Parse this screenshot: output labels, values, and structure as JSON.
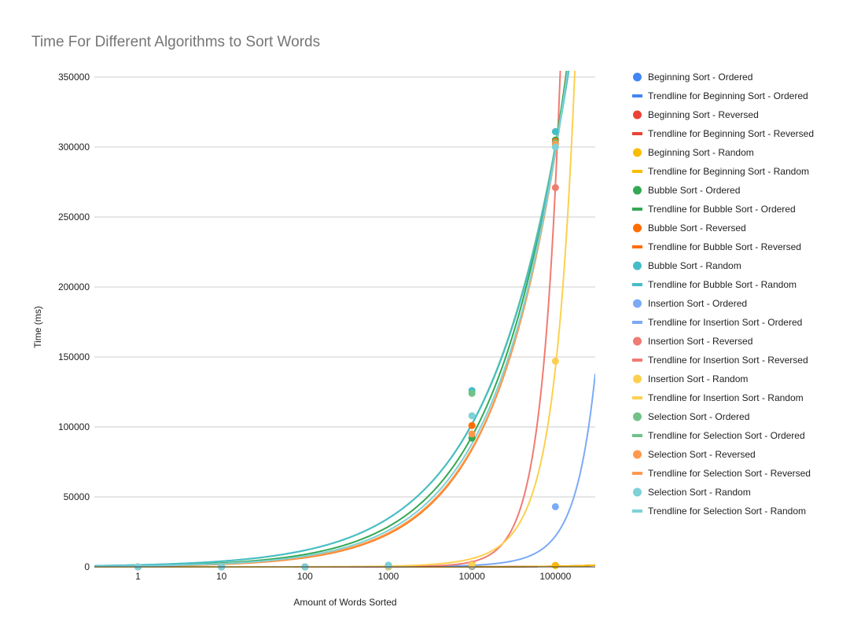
{
  "chart_data": {
    "type": "scatter",
    "title": "Time For Different Algorithms to Sort Words",
    "xlabel": "Amount of Words Sorted",
    "ylabel": "Time (ms)",
    "x_scale": "log",
    "x_ticks": [
      "1",
      "10",
      "100",
      "1000",
      "10000",
      "100000"
    ],
    "y_ticks": [
      "0",
      "50000",
      "100000",
      "150000",
      "200000",
      "250000",
      "300000",
      "350000"
    ],
    "xlim": [
      0.3,
      300000
    ],
    "ylim": [
      0,
      350000
    ],
    "grid": true,
    "legend_position": "right",
    "series": [
      {
        "name": "Beginning Sort - Ordered",
        "color": "#4285f4",
        "x": [
          1,
          10,
          100,
          1000,
          10000,
          100000
        ],
        "y": [
          0,
          0,
          0,
          20,
          200,
          1000
        ]
      },
      {
        "name": "Beginning Sort - Reversed",
        "color": "#ea4335",
        "x": [
          1,
          10,
          100,
          1000,
          10000,
          100000
        ],
        "y": [
          0,
          0,
          0,
          20,
          200,
          1000
        ]
      },
      {
        "name": "Beginning Sort - Random",
        "color": "#fbbc04",
        "x": [
          1,
          10,
          100,
          1000,
          10000,
          100000
        ],
        "y": [
          0,
          0,
          0,
          20,
          200,
          1000
        ]
      },
      {
        "name": "Bubble Sort - Ordered",
        "color": "#34a853",
        "x": [
          1,
          10,
          100,
          1000,
          10000,
          100000
        ],
        "y": [
          0,
          0,
          0,
          900,
          92000,
          305000
        ]
      },
      {
        "name": "Bubble Sort - Reversed",
        "color": "#ff6d01",
        "x": [
          1,
          10,
          100,
          1000,
          10000,
          100000
        ],
        "y": [
          0,
          0,
          0,
          1000,
          101000,
          304000
        ]
      },
      {
        "name": "Bubble Sort - Random",
        "color": "#46bdc6",
        "x": [
          1,
          10,
          100,
          1000,
          10000,
          100000
        ],
        "y": [
          0,
          0,
          0,
          1100,
          126000,
          311000
        ]
      },
      {
        "name": "Insertion Sort - Ordered",
        "color": "#7baaf7",
        "x": [
          1,
          10,
          100,
          1000,
          10000,
          100000
        ],
        "y": [
          0,
          0,
          0,
          50,
          500,
          43000
        ]
      },
      {
        "name": "Insertion Sort - Reversed",
        "color": "#f07b72",
        "x": [
          1,
          10,
          100,
          1000,
          10000,
          100000
        ],
        "y": [
          0,
          0,
          0,
          300,
          2000,
          271000
        ]
      },
      {
        "name": "Insertion Sort - Random",
        "color": "#fcd04f",
        "x": [
          1,
          10,
          100,
          1000,
          10000,
          100000
        ],
        "y": [
          0,
          0,
          0,
          200,
          1500,
          147000
        ]
      },
      {
        "name": "Selection Sort - Ordered",
        "color": "#71c287",
        "x": [
          1,
          10,
          100,
          1000,
          10000,
          100000
        ],
        "y": [
          0,
          0,
          0,
          900,
          124000,
          303000
        ]
      },
      {
        "name": "Selection Sort - Reversed",
        "color": "#ff994d",
        "x": [
          1,
          10,
          100,
          1000,
          10000,
          100000
        ],
        "y": [
          0,
          0,
          0,
          1000,
          95000,
          302000
        ]
      },
      {
        "name": "Selection Sort - Random",
        "color": "#7ed1d7",
        "x": [
          1,
          10,
          100,
          1000,
          10000,
          100000
        ],
        "y": [
          0,
          0,
          0,
          1200,
          108000,
          300000
        ]
      }
    ],
    "trendlines": [
      {
        "name": "Trendline for Beginning Sort - Ordered",
        "color": "#4285f4",
        "type": "polynomial",
        "coef": [
          0,
          0.004,
          0
        ]
      },
      {
        "name": "Trendline for Beginning Sort - Reversed",
        "color": "#ea4335",
        "type": "polynomial",
        "coef": [
          0,
          0.004,
          0
        ]
      },
      {
        "name": "Trendline for Beginning Sort - Random",
        "color": "#fbbc04",
        "type": "polynomial",
        "coef": [
          0,
          0.004,
          0
        ]
      },
      {
        "name": "Trendline for Bubble Sort - Ordered",
        "color": "#34a853",
        "type": "power",
        "coef": [
          850,
          0.51
        ]
      },
      {
        "name": "Trendline for Bubble Sort - Reversed",
        "color": "#ff6d01",
        "type": "power",
        "coef": [
          520,
          0.552
        ]
      },
      {
        "name": "Trendline for Bubble Sort - Random",
        "color": "#46bdc6",
        "type": "power",
        "coef": [
          1380,
          0.467
        ]
      },
      {
        "name": "Trendline for Insertion Sort - Ordered",
        "color": "#7baaf7",
        "type": "polynomial",
        "coef": [
          0,
          0.1,
          1.2e-06
        ]
      },
      {
        "name": "Trendline for Insertion Sort - Reversed",
        "color": "#f07b72",
        "type": "polynomial",
        "coef": [
          0,
          0.1,
          2.62e-05
        ]
      },
      {
        "name": "Trendline for Insertion Sort - Random",
        "color": "#fcd04f",
        "type": "polynomial",
        "coef": [
          0,
          0.5,
          9.2e-06
        ]
      },
      {
        "name": "Trendline for Selection Sort - Ordered",
        "color": "#71c287",
        "type": "power",
        "coef": [
          1360,
          0.469
        ]
      },
      {
        "name": "Trendline for Selection Sort - Reversed",
        "color": "#ff994d",
        "type": "power",
        "coef": [
          570,
          0.543
        ]
      },
      {
        "name": "Trendline for Selection Sort - Random",
        "color": "#7ed1d7",
        "type": "power",
        "coef": [
          680,
          0.528
        ]
      }
    ],
    "legend": [
      "Beginning Sort - Ordered",
      "Trendline for Beginning Sort - Ordered",
      "Beginning Sort - Reversed",
      "Trendline for Beginning Sort - Reversed",
      "Beginning Sort - Random",
      "Trendline for Beginning Sort - Random",
      "Bubble Sort - Ordered",
      "Trendline for Bubble Sort - Ordered",
      "Bubble Sort - Reversed",
      "Trendline for Bubble Sort - Reversed",
      "Bubble Sort - Random",
      "Trendline for Bubble Sort - Random",
      "Insertion Sort - Ordered",
      "Trendline for Insertion Sort - Ordered",
      "Insertion Sort - Reversed",
      "Trendline for Insertion Sort - Reversed",
      "Insertion Sort - Random",
      "Trendline for Insertion Sort - Random",
      "Selection Sort - Ordered",
      "Trendline for Selection Sort - Ordered",
      "Selection Sort - Reversed",
      "Trendline for Selection Sort - Reversed",
      "Selection Sort - Random",
      "Trendline for Selection Sort - Random"
    ]
  }
}
